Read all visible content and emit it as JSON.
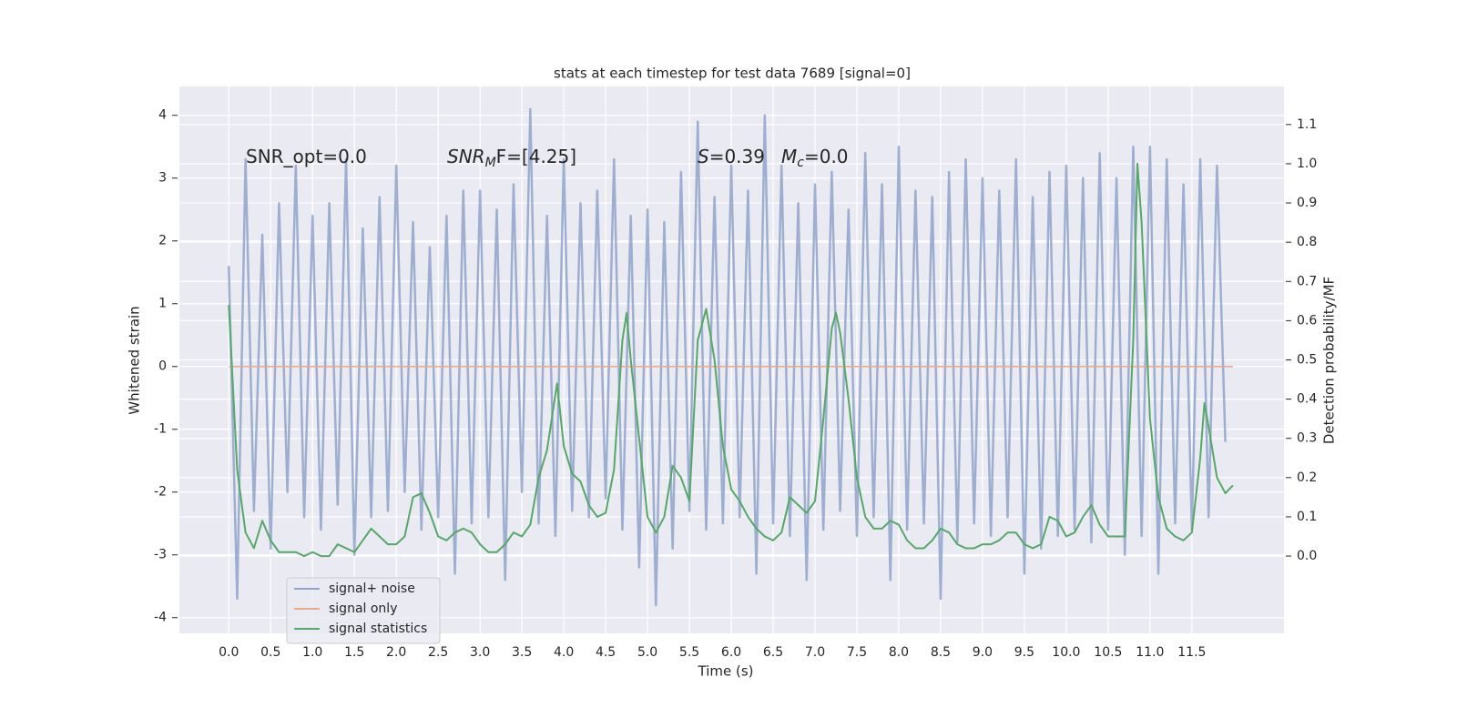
{
  "chart_data": {
    "type": "line",
    "title": "stats at each timestep for test data 7689 [signal=0]",
    "xlabel": "Time (s)",
    "ylabel": "Whitened strain",
    "y2label": "Detection probability/MF",
    "xlim": [
      -0.59,
      12.6
    ],
    "ylim": [
      -4.25,
      4.46
    ],
    "y2lim": [
      -0.197,
      1.197
    ],
    "xticks": [
      {
        "value": 0,
        "label": "0.0"
      },
      0.5,
      {
        "value": 1,
        "label": "1.0"
      },
      1.5,
      {
        "value": 2,
        "label": "2.0"
      },
      2.5,
      {
        "value": 3,
        "label": "3.0"
      },
      3.5,
      {
        "value": 4,
        "label": "4.0"
      },
      4.5,
      {
        "value": 5,
        "label": "5.0"
      },
      5.5,
      {
        "value": 6,
        "label": "6.0"
      },
      6.5,
      {
        "value": 7,
        "label": "7.0"
      },
      7.5,
      {
        "value": 8,
        "label": "8.0"
      },
      8.5,
      {
        "value": 9,
        "label": "9.0"
      },
      9.5,
      {
        "value": 10,
        "label": "10.0"
      },
      10.5,
      {
        "value": 11,
        "label": "11.0"
      },
      11.5
    ],
    "yticks": [
      -4,
      -3,
      -2,
      -1,
      0,
      1,
      2,
      3,
      4
    ],
    "y2ticks": [
      {
        "value": 0,
        "label": "0.0"
      },
      0.1,
      0.2,
      0.3,
      0.4,
      0.5,
      0.6,
      0.7,
      0.8,
      0.9,
      {
        "value": 1,
        "label": "1.0"
      },
      1.1
    ],
    "grid": true,
    "legend": "lower left",
    "annotations": [
      {
        "text": "SNR_opt=0.0"
      },
      {
        "base": "SNR",
        "sub": "M",
        "tail": "F=[4.25]"
      },
      {
        "base": "S",
        "tail": "=0.39"
      },
      {
        "base": "M",
        "sub": "c",
        "tail": "=0.0"
      }
    ],
    "series": [
      {
        "name": "signal+ noise",
        "color": "#8fa3cb",
        "x": [
          0,
          0.1,
          0.2,
          0.3,
          0.4,
          0.5,
          0.6,
          0.7,
          0.8,
          0.9,
          1,
          1.1,
          1.2,
          1.3,
          1.4,
          1.5,
          1.6,
          1.7,
          1.8,
          1.9,
          2,
          2.1,
          2.2,
          2.3,
          2.4,
          2.5,
          2.6,
          2.7,
          2.8,
          2.9,
          3,
          3.1,
          3.2,
          3.3,
          3.4,
          3.5,
          3.6,
          3.7,
          3.8,
          3.9,
          4,
          4.1,
          4.2,
          4.3,
          4.4,
          4.5,
          4.6,
          4.7,
          4.8,
          4.9,
          5,
          5.1,
          5.2,
          5.3,
          5.4,
          5.5,
          5.6,
          5.7,
          5.8,
          5.9,
          6,
          6.1,
          6.2,
          6.3,
          6.4,
          6.5,
          6.6,
          6.7,
          6.8,
          6.9,
          7,
          7.1,
          7.2,
          7.3,
          7.4,
          7.5,
          7.6,
          7.7,
          7.8,
          7.9,
          8,
          8.1,
          8.2,
          8.3,
          8.4,
          8.5,
          8.6,
          8.7,
          8.8,
          8.9,
          9,
          9.1,
          9.2,
          9.3,
          9.4,
          9.5,
          9.6,
          9.7,
          9.8,
          9.9,
          10,
          10.1,
          10.2,
          10.3,
          10.4,
          10.5,
          10.6,
          10.7,
          10.8,
          10.9,
          11,
          11.1,
          11.2,
          11.3,
          11.4,
          11.5,
          11.6,
          11.7,
          11.8,
          11.9
        ],
        "values": [
          1.6,
          -3.7,
          3.3,
          -2.3,
          2.1,
          -2.9,
          2.6,
          -2.0,
          3.2,
          -2.4,
          2.4,
          -2.6,
          2.6,
          -2.2,
          3.3,
          -3.0,
          2.2,
          -2.4,
          2.7,
          -2.3,
          3.2,
          -2.0,
          2.3,
          -2.6,
          1.9,
          -2.4,
          2.4,
          -3.3,
          2.8,
          -2.5,
          2.8,
          -2.4,
          2.5,
          -3.4,
          2.9,
          -2.0,
          4.1,
          -2.5,
          2.4,
          -2.7,
          3.3,
          -2.3,
          2.6,
          -2.4,
          2.8,
          -2.1,
          3.3,
          -2.6,
          2.4,
          -3.2,
          2.5,
          -3.8,
          2.3,
          -2.9,
          3.1,
          -2.3,
          3.9,
          -2.6,
          2.7,
          -2.5,
          3.2,
          -2.4,
          2.8,
          -3.3,
          4.0,
          -2.5,
          3.2,
          -2.7,
          2.6,
          -3.4,
          2.9,
          -2.6,
          3.1,
          -2.3,
          2.5,
          -2.7,
          3.4,
          -2.4,
          2.9,
          -3.4,
          3.5,
          -2.6,
          2.8,
          -2.5,
          2.7,
          -3.7,
          3.1,
          -2.8,
          3.3,
          -2.5,
          3.0,
          -2.7,
          2.8,
          -2.4,
          3.3,
          -3.3,
          2.7,
          -2.9,
          3.1,
          -2.7,
          3.2,
          -2.6,
          3.0,
          -2.8,
          3.4,
          -2.6,
          3.0,
          -3.0,
          3.5,
          -2.7,
          3.5,
          -3.3,
          3.3,
          -2.5,
          2.9,
          -2.6,
          3.3,
          -2.4,
          3.2,
          -1.2
        ]
      },
      {
        "name": "signal only",
        "color": "#e9a98a",
        "x": [
          0,
          11.99
        ],
        "values": [
          0,
          0
        ]
      },
      {
        "name": "signal statistics",
        "color": "#55a868",
        "axis": "y2",
        "x": [
          0,
          0.1,
          0.2,
          0.3,
          0.4,
          0.5,
          0.6,
          0.7,
          0.8,
          0.9,
          1.0,
          1.1,
          1.2,
          1.3,
          1.4,
          1.5,
          1.6,
          1.7,
          1.8,
          1.9,
          2.0,
          2.1,
          2.2,
          2.3,
          2.4,
          2.5,
          2.6,
          2.7,
          2.8,
          2.9,
          3.0,
          3.1,
          3.2,
          3.3,
          3.4,
          3.5,
          3.6,
          3.7,
          3.8,
          3.92,
          4.0,
          4.1,
          4.2,
          4.3,
          4.4,
          4.5,
          4.6,
          4.7,
          4.75,
          4.8,
          4.9,
          5.0,
          5.1,
          5.2,
          5.3,
          5.4,
          5.5,
          5.6,
          5.7,
          5.8,
          5.9,
          6.0,
          6.1,
          6.2,
          6.3,
          6.4,
          6.5,
          6.6,
          6.7,
          6.8,
          6.9,
          7.0,
          7.1,
          7.2,
          7.25,
          7.3,
          7.4,
          7.5,
          7.6,
          7.7,
          7.8,
          7.9,
          8.0,
          8.1,
          8.2,
          8.3,
          8.4,
          8.5,
          8.6,
          8.7,
          8.8,
          8.9,
          9.0,
          9.1,
          9.2,
          9.3,
          9.4,
          9.5,
          9.6,
          9.7,
          9.8,
          9.9,
          10.0,
          10.1,
          10.2,
          10.3,
          10.4,
          10.5,
          10.6,
          10.7,
          10.8,
          10.85,
          10.9,
          11.0,
          11.1,
          11.2,
          11.3,
          11.4,
          11.5,
          11.6,
          11.65,
          11.7,
          11.8,
          11.9,
          11.99
        ],
        "values": [
          0.64,
          0.22,
          0.06,
          0.02,
          0.09,
          0.04,
          0.01,
          0.01,
          0.01,
          0.0,
          0.01,
          0.0,
          0.0,
          0.03,
          0.02,
          0.01,
          0.04,
          0.07,
          0.05,
          0.03,
          0.03,
          0.05,
          0.15,
          0.16,
          0.11,
          0.05,
          0.04,
          0.06,
          0.07,
          0.06,
          0.03,
          0.01,
          0.01,
          0.03,
          0.06,
          0.05,
          0.08,
          0.2,
          0.27,
          0.44,
          0.28,
          0.21,
          0.19,
          0.13,
          0.1,
          0.11,
          0.22,
          0.55,
          0.62,
          0.5,
          0.3,
          0.1,
          0.06,
          0.1,
          0.23,
          0.2,
          0.14,
          0.55,
          0.63,
          0.5,
          0.28,
          0.17,
          0.14,
          0.1,
          0.07,
          0.05,
          0.04,
          0.06,
          0.15,
          0.13,
          0.11,
          0.14,
          0.35,
          0.58,
          0.62,
          0.57,
          0.4,
          0.2,
          0.1,
          0.07,
          0.07,
          0.09,
          0.08,
          0.04,
          0.02,
          0.02,
          0.04,
          0.07,
          0.06,
          0.03,
          0.02,
          0.02,
          0.03,
          0.03,
          0.04,
          0.06,
          0.06,
          0.03,
          0.02,
          0.03,
          0.1,
          0.09,
          0.05,
          0.06,
          0.1,
          0.13,
          0.08,
          0.05,
          0.05,
          0.05,
          0.55,
          1.0,
          0.85,
          0.35,
          0.15,
          0.07,
          0.05,
          0.04,
          0.06,
          0.25,
          0.39,
          0.33,
          0.2,
          0.16,
          0.18
        ]
      }
    ]
  }
}
